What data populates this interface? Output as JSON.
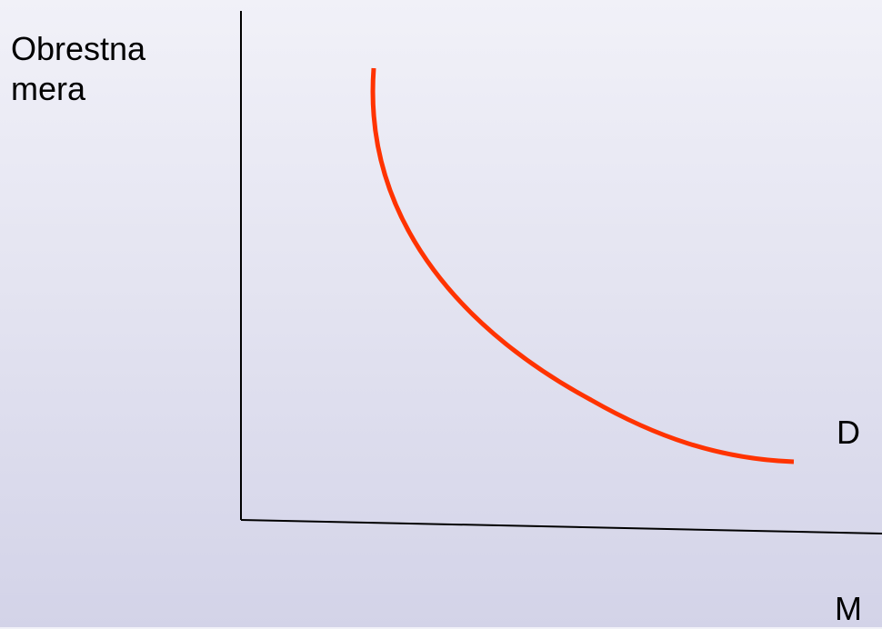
{
  "diagram": {
    "y_axis_label": "Obrestna mera",
    "curve_label": "D",
    "x_axis_label": "M",
    "colors": {
      "axis": "#000000",
      "curve": "#ff3300",
      "background_top": "#f1f1f8",
      "background_bottom": "#d3d3e8"
    }
  }
}
